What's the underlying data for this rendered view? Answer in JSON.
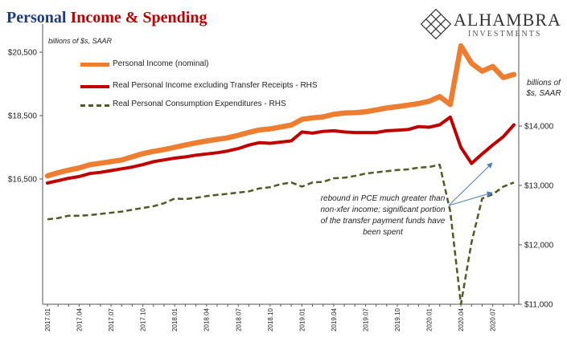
{
  "title": {
    "part1": "Personal ",
    "part2": "Income & Spending"
  },
  "brand": {
    "name": "ALHAMBRA",
    "sub": "INVESTMENTS",
    "logo_icon": "diamond-lattice-icon"
  },
  "colors": {
    "personal_income": "#ed7d31",
    "real_income": "#c00000",
    "pce": "#4f5a24"
  },
  "chart_data": {
    "type": "line",
    "units_left": "billions of $s, SAAR",
    "units_right": "billions of $s, SAAR",
    "annotation": "rebound in PCE much greater than non-xfer income; significant portion of the transfer payment funds have been spent",
    "x": [
      "2017.01",
      "2017.02",
      "2017.03",
      "2017.04",
      "2017.05",
      "2017.06",
      "2017.07",
      "2017.08",
      "2017.09",
      "2017.10",
      "2017.11",
      "2017.12",
      "2018.01",
      "2018.02",
      "2018.03",
      "2018.04",
      "2018.05",
      "2018.06",
      "2018.07",
      "2018.08",
      "2018.09",
      "2018.10",
      "2018.11",
      "2018.12",
      "2019.01",
      "2019.02",
      "2019.03",
      "2019.04",
      "2019.05",
      "2019.06",
      "2019.07",
      "2019.08",
      "2019.09",
      "2019.10",
      "2019.11",
      "2019.12",
      "2020.01",
      "2020.02",
      "2020.03",
      "2020.04",
      "2020.05",
      "2020.06",
      "2020.07",
      "2020.08",
      "2020.09"
    ],
    "x_tick_labels": [
      "2017.01",
      "2017.04",
      "2017.07",
      "2017.10",
      "2018.01",
      "2018.04",
      "2018.07",
      "2018.10",
      "2019.01",
      "2019.04",
      "2019.07",
      "2019.10",
      "2020.01",
      "2020.04",
      "2020.07"
    ],
    "left_axis": {
      "ticks": [
        16500,
        18500,
        20500
      ],
      "tick_labels": [
        "$16,500",
        "$18,500",
        "$20,500"
      ]
    },
    "right_axis": {
      "ticks": [
        11000,
        12000,
        13000,
        14000
      ],
      "tick_labels": [
        "$11,000",
        "$12,000",
        "$13,000",
        "$14,000"
      ]
    },
    "series": [
      {
        "name": "Personal Income (nominal)",
        "axis": "left",
        "color": "#ed7d31",
        "style": "solid",
        "values": [
          16600,
          16700,
          16780,
          16850,
          16950,
          17000,
          17050,
          17100,
          17200,
          17300,
          17370,
          17430,
          17500,
          17570,
          17640,
          17700,
          17750,
          17800,
          17880,
          17970,
          18050,
          18080,
          18140,
          18200,
          18380,
          18430,
          18460,
          18540,
          18580,
          18590,
          18620,
          18680,
          18740,
          18780,
          18830,
          18880,
          18950,
          19100,
          18850,
          20700,
          20150,
          19900,
          20050,
          19700,
          19800
        ]
      },
      {
        "name": "Real Personal Income excluding Transfer Receipts - RHS",
        "axis": "right",
        "color": "#c00000",
        "style": "solid",
        "values": [
          13040,
          13080,
          13120,
          13150,
          13200,
          13220,
          13250,
          13280,
          13310,
          13350,
          13400,
          13430,
          13460,
          13480,
          13510,
          13530,
          13550,
          13580,
          13620,
          13680,
          13720,
          13710,
          13730,
          13750,
          13900,
          13880,
          13910,
          13920,
          13900,
          13890,
          13890,
          13890,
          13920,
          13930,
          13940,
          13990,
          13980,
          14020,
          14150,
          13640,
          13370,
          13530,
          13680,
          13820,
          14020
        ]
      },
      {
        "name": "Real Personal Consumption Expenditures - RHS",
        "axis": "right",
        "color": "#4f5a24",
        "style": "dashed",
        "values": [
          12430,
          12450,
          12490,
          12490,
          12500,
          12520,
          12540,
          12560,
          12590,
          12620,
          12650,
          12700,
          12780,
          12770,
          12790,
          12820,
          12840,
          12860,
          12880,
          12900,
          12950,
          12970,
          13020,
          13050,
          12980,
          13050,
          13060,
          13120,
          13130,
          13160,
          13200,
          13220,
          13240,
          13260,
          13270,
          13300,
          13310,
          13350,
          12560,
          11000,
          12040,
          12780,
          12850,
          12980,
          13050
        ]
      }
    ]
  }
}
